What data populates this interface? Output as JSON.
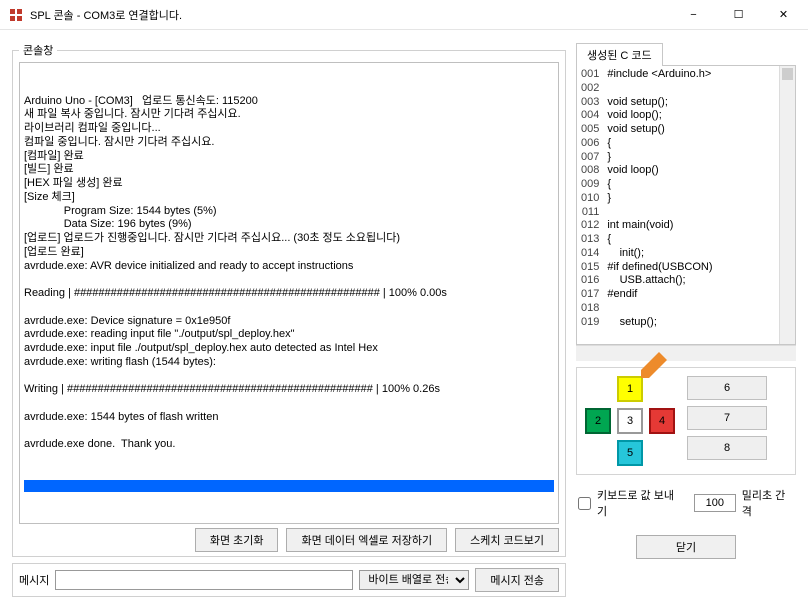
{
  "window": {
    "title": "SPL 콘솔 - COM3로 연결합니다.",
    "min_icon": "−",
    "max_icon": "☐",
    "close_icon": "✕"
  },
  "console": {
    "legend": "콘솔창",
    "text": "Arduino Uno - [COM3]   업로드 통신속도: 115200\n새 파일 복사 중입니다. 잠시만 기다려 주십시요.\n라이브러리 컴파일 중입니다...\n컴파일 중입니다. 잠시만 기다려 주십시요.\n[컴파일] 완료\n[빌드] 완료\n[HEX 파일 생성] 완료\n[Size 체크]\n             Program Size: 1544 bytes (5%)\n             Data Size: 196 bytes (9%)\n[업로드] 업로드가 진행중입니다. 잠시만 기다려 주십시요... (30초 정도 소요됩니다)\n[업로드 완료]\navrdude.exe: AVR device initialized and ready to accept instructions\n\nReading | ################################################## | 100% 0.00s\n\navrdude.exe: Device signature = 0x1e950f\navrdude.exe: reading input file \"./output/spl_deploy.hex\"\navrdude.exe: input file ./output/spl_deploy.hex auto detected as Intel Hex\navrdude.exe: writing flash (1544 bytes):\n\nWriting | ################################################## | 100% 0.26s\n\navrdude.exe: 1544 bytes of flash written\n\navrdude.exe done.  Thank you.",
    "progress_color": "#0066ff"
  },
  "buttons": {
    "reset": "화면 초기화",
    "save_excel": "화면 데이터 엑셀로 저장하기",
    "view_sketch": "스케치 코드보기",
    "send_msg": "메시지 전송",
    "close": "닫기"
  },
  "msg": {
    "label": "메시지",
    "input_value": "",
    "select_value": "바이트 배열로 전송"
  },
  "code_panel": {
    "tab": "생성된 C 코드",
    "lines": [
      "#include <Arduino.h>",
      "",
      "void setup();",
      "void loop();",
      "void setup()",
      "{",
      "}",
      "void loop()",
      "{",
      "}",
      "",
      "int main(void)",
      "{",
      "    init();",
      "#if defined(USBCON)",
      "    USB.attach();",
      "#endif",
      "",
      "    setup();"
    ],
    "start_num": 1
  },
  "pads": {
    "cells": [
      {
        "n": "1",
        "bg": "#ffff00",
        "border": "#cccc00",
        "r": 1,
        "c": 2
      },
      {
        "n": "2",
        "bg": "#00a651",
        "border": "#006633",
        "r": 2,
        "c": 1
      },
      {
        "n": "3",
        "bg": "#ffffff",
        "border": "#999999",
        "r": 2,
        "c": 2
      },
      {
        "n": "4",
        "bg": "#e53935",
        "border": "#a11212",
        "r": 2,
        "c": 3
      },
      {
        "n": "5",
        "bg": "#26c6da",
        "border": "#0097a7",
        "r": 3,
        "c": 2
      }
    ],
    "big": [
      "6",
      "7",
      "8"
    ],
    "arrow_color": "#ed8b2b"
  },
  "kb": {
    "checkbox_label": "키보드로 값 보내기",
    "interval_value": "100",
    "interval_label": "밀리초 간격"
  }
}
